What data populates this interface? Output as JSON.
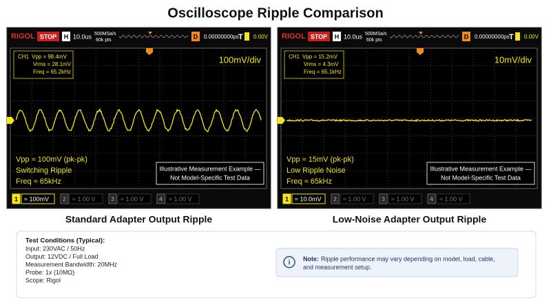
{
  "title": "Oscilloscope Ripple Comparison",
  "scopes": [
    {
      "brand": "RIGOL",
      "status": "STOP",
      "h_label": "H",
      "timebase": "10.0us",
      "sample_rate": "500MSa/s",
      "points": "60k pts",
      "delay_label": "D",
      "delay": "0.00000000ps",
      "trigger_level": "0.00V",
      "channel": "CH1",
      "measurements": [
        "Vpp = 98.4mV",
        "Vrms = 28.1mV",
        "Freq = 65.2kHz"
      ],
      "scale": "100mV/div",
      "notes": [
        "Vpp ≈ 100mV (pk-pk)",
        "Switching Ripple",
        "Freq ≈ 65kHz"
      ],
      "disclaimer": [
        "Illustrative Measurement Example —",
        "Not Model-Specific Test Data"
      ],
      "channels": [
        {
          "num": "1",
          "scale": "≈ 100mV"
        },
        {
          "num": "2",
          "scale": "≈ 1.00 V"
        },
        {
          "num": "3",
          "scale": "≈ 1.00 V"
        },
        {
          "num": "4",
          "scale": "≈ 1.00 V"
        }
      ],
      "caption": "Standard Adapter Output Ripple"
    },
    {
      "brand": "RIGOL",
      "status": "STOP",
      "h_label": "H",
      "timebase": "10.0us",
      "sample_rate": "500MSa/s",
      "points": "60k pts",
      "delay_label": "D",
      "delay": "0.00000000ps",
      "trigger_level": "0.00V",
      "channel": "CH1",
      "measurements": [
        "Vpp = 15.2mV",
        "Vrms = 4.3mV",
        "Freq = 65.1kHz"
      ],
      "scale": "10mV/div",
      "notes": [
        "Vpp ≈ 15mV (pk-pk)",
        "Low Ripple Noise",
        "Freq ≈ 65kHz"
      ],
      "disclaimer": [
        "Illustrative Measurement Example —",
        "Not Model-Specific Test Data"
      ],
      "channels": [
        {
          "num": "1",
          "scale": "≈ 10.0mV"
        },
        {
          "num": "2",
          "scale": "≈ 1.00 V"
        },
        {
          "num": "3",
          "scale": "≈ 1.00 V"
        },
        {
          "num": "4",
          "scale": "≈ 1.00 V"
        }
      ],
      "caption": "Low-Noise Adapter Output Ripple"
    }
  ],
  "conditions": {
    "heading": "Test Conditions (Typical):",
    "items": [
      "Input: 230VAC / 50Hz",
      "Output: 12VDC / Full Load",
      "Measurement Bandwidth: 20MHz",
      "Probe: 1x (10MΩ)",
      "Scope: Rigol"
    ]
  },
  "note": {
    "label": "Note:",
    "lines": [
      "Ripple performance may vary depending on model, load, cable,",
      "and measurement setup."
    ]
  }
}
